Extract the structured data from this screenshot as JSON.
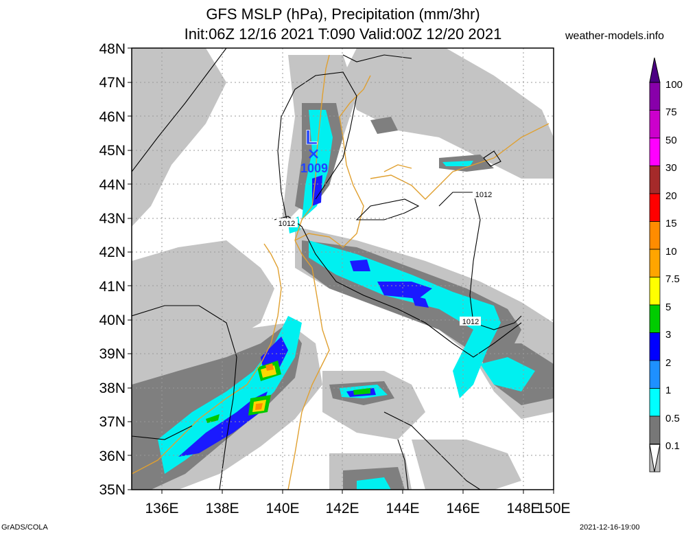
{
  "header": {
    "title_line1": "GFS MSLP (hPa), Precipitation (mm/3hr)",
    "title_line2": "Init:06Z 12/16 2021 T:090 Valid:00Z 12/20 2021",
    "site": "weather-models.info"
  },
  "footer": {
    "left": "GrADS/COLA",
    "right": "2021-12-16-19:00"
  },
  "map": {
    "lat_labels": [
      "48N",
      "47N",
      "46N",
      "45N",
      "44N",
      "43N",
      "42N",
      "41N",
      "40N",
      "39N",
      "38N",
      "37N",
      "36N",
      "35N"
    ],
    "lon_labels": [
      "136E",
      "138E",
      "140E",
      "142E",
      "144E",
      "146E",
      "148E",
      "150E"
    ],
    "low": {
      "symbol": "L",
      "pressure": "1009"
    },
    "isobar_labels": [
      "1012",
      "1012",
      "1012"
    ]
  },
  "colorbar": {
    "labels": [
      "100",
      "75",
      "50",
      "30",
      "20",
      "15",
      "10",
      "7.5",
      "5",
      "3",
      "2",
      "1",
      "0.5",
      "0.1"
    ],
    "colors": [
      "#4b0082",
      "#8800aa",
      "#cc00cc",
      "#ff00ff",
      "#a52a2a",
      "#ff0000",
      "#ff8c00",
      "#ffa500",
      "#ffff00",
      "#00cc00",
      "#0000ff",
      "#1e90ff",
      "#00ffff",
      "#777777",
      "#bbbbbb",
      "#ffffff"
    ]
  }
}
